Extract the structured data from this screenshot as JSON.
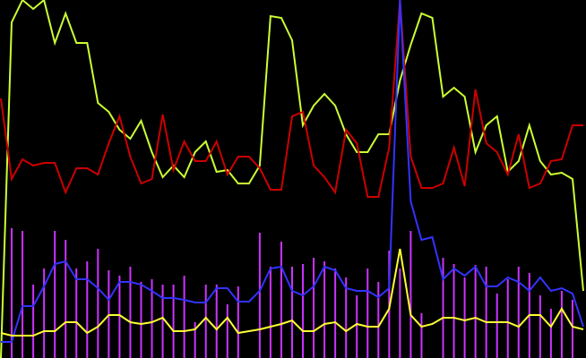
{
  "chart_data": {
    "type": "line",
    "x": [
      0,
      1,
      2,
      3,
      4,
      5,
      6,
      7,
      8,
      9,
      10,
      11,
      12,
      13,
      14,
      15,
      16,
      17,
      18,
      19,
      20,
      21,
      22,
      23,
      24,
      25,
      26,
      27,
      28,
      29,
      30,
      31,
      32,
      33,
      34,
      35,
      36,
      37,
      38,
      39,
      40,
      41,
      42,
      43,
      44,
      45,
      46,
      47,
      48,
      49,
      50,
      51,
      52,
      53,
      54
    ],
    "xlim": [
      0,
      54
    ],
    "ylim": [
      0,
      400
    ],
    "background": "#000000",
    "series": [
      {
        "type": "bar",
        "color": "#cc33ff",
        "values": [
          null,
          145,
          142,
          82,
          100,
          142,
          132,
          100,
          108,
          122,
          98,
          92,
          102,
          85,
          88,
          82,
          82,
          92,
          40,
          82,
          82,
          60,
          80,
          null,
          140,
          102,
          130,
          102,
          105,
          112,
          108,
          100,
          90,
          70,
          100,
          85,
          120,
          100,
          142,
          50,
          null,
          112,
          105,
          90,
          104,
          102,
          72,
          88,
          102,
          95,
          70,
          55,
          75,
          65,
          null
        ]
      },
      {
        "type": "line",
        "color": "#ccff33",
        "values": [
          0,
          375,
          400,
          390,
          400,
          352,
          385,
          352,
          352,
          285,
          275,
          255,
          245,
          265,
          230,
          202,
          215,
          202,
          230,
          242,
          208,
          210,
          195,
          195,
          215,
          382,
          380,
          355,
          260,
          282,
          295,
          282,
          250,
          230,
          230,
          250,
          250,
          310,
          350,
          385,
          380,
          292,
          302,
          292,
          230,
          260,
          270,
          208,
          220,
          260,
          220,
          205,
          207,
          200,
          75
        ]
      },
      {
        "type": "line",
        "color": "#cc0000",
        "values": [
          290,
          200,
          222,
          215,
          218,
          218,
          185,
          212,
          212,
          205,
          240,
          270,
          225,
          195,
          200,
          272,
          210,
          242,
          220,
          220,
          242,
          205,
          225,
          225,
          212,
          188,
          188,
          270,
          275,
          215,
          202,
          185,
          255,
          240,
          180,
          180,
          235,
          400,
          225,
          190,
          190,
          195,
          235,
          192,
          300,
          240,
          230,
          205,
          250,
          190,
          195,
          220,
          222,
          260,
          260
        ]
      },
      {
        "type": "line",
        "color": "#3333ff",
        "values": [
          18,
          18,
          58,
          58,
          80,
          105,
          108,
          88,
          88,
          78,
          65,
          85,
          85,
          82,
          75,
          67,
          67,
          65,
          62,
          62,
          78,
          78,
          63,
          63,
          75,
          100,
          102,
          75,
          70,
          80,
          102,
          98,
          78,
          75,
          75,
          68,
          78,
          400,
          175,
          132,
          135,
          88,
          100,
          92,
          102,
          80,
          80,
          90,
          85,
          75,
          90,
          75,
          78,
          72,
          35
        ]
      },
      {
        "type": "line",
        "color": "#ffff33",
        "values": [
          28,
          25,
          25,
          25,
          30,
          30,
          40,
          40,
          28,
          35,
          48,
          48,
          40,
          38,
          40,
          45,
          30,
          30,
          32,
          45,
          32,
          45,
          28,
          30,
          32,
          35,
          38,
          42,
          30,
          30,
          38,
          40,
          30,
          38,
          35,
          35,
          55,
          122,
          48,
          35,
          38,
          45,
          45,
          42,
          45,
          40,
          40,
          40,
          35,
          48,
          48,
          35,
          55,
          35,
          32
        ]
      }
    ]
  }
}
